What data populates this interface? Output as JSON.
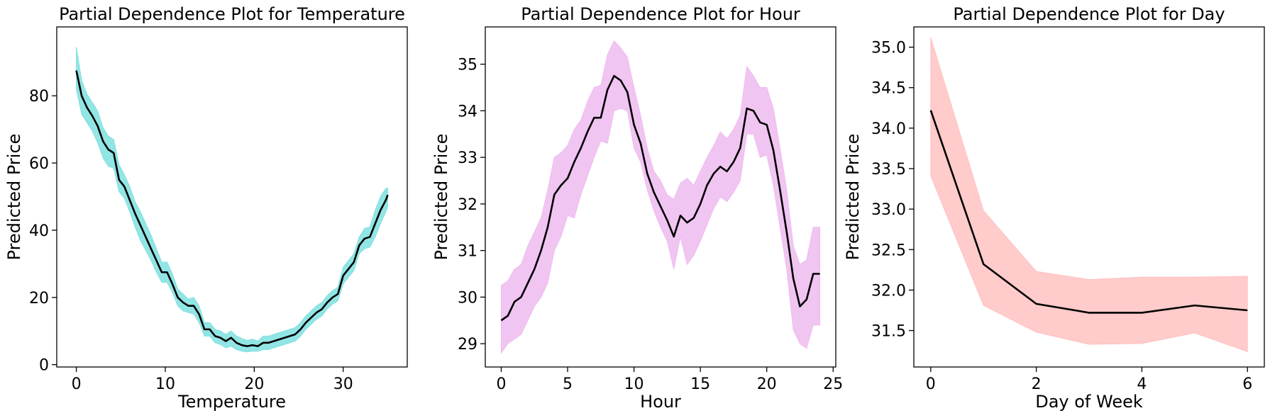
{
  "chart_data": [
    {
      "type": "line",
      "title": "Partial Dependence Plot for Temperature",
      "xlabel": "Temperature",
      "ylabel": "Predicted Price",
      "xlim": [
        -2.2,
        37.2
      ],
      "ylim": [
        -0.7,
        100.5
      ],
      "xticks": [
        0,
        10,
        20,
        30
      ],
      "yticks": [
        0,
        20,
        40,
        60,
        80
      ],
      "grid": false,
      "band_color": "#7fe0e0",
      "line_color": "#000000",
      "x": [
        0,
        0.6,
        1.2,
        1.8,
        2.4,
        3.0,
        3.6,
        4.2,
        4.8,
        5.4,
        6.0,
        6.6,
        7.2,
        7.8,
        8.4,
        9.0,
        9.6,
        10.2,
        10.8,
        11.4,
        12.0,
        12.6,
        13.2,
        13.8,
        14.4,
        15.0,
        15.6,
        16.2,
        16.8,
        17.4,
        18.0,
        18.6,
        19.2,
        19.8,
        20.4,
        21.0,
        21.6,
        22.2,
        22.8,
        23.4,
        24.0,
        24.6,
        25.2,
        25.8,
        26.4,
        27.0,
        27.6,
        28.2,
        28.8,
        29.4,
        30.0,
        30.6,
        31.2,
        31.8,
        32.4,
        33.0,
        33.6,
        34.2,
        34.8,
        35.0
      ],
      "mean": [
        87.5,
        80,
        76.5,
        74,
        71,
        66.5,
        64,
        63,
        55,
        53,
        49,
        45,
        41.5,
        38,
        34.5,
        31,
        27.5,
        27.5,
        24,
        20,
        18.5,
        17.5,
        17.5,
        15,
        10.5,
        10.5,
        8.5,
        8,
        7,
        8,
        6.5,
        5.8,
        5.5,
        5.8,
        5.5,
        6.5,
        6.5,
        7,
        7.5,
        8,
        8.5,
        9,
        10.5,
        12.5,
        14,
        15.5,
        16.5,
        18.5,
        20,
        21,
        26.5,
        28.5,
        30.5,
        35.5,
        37.5,
        38,
        42,
        46,
        49,
        50.5
      ],
      "lower": [
        82,
        74.5,
        72,
        69.5,
        66,
        61.5,
        59,
        58.5,
        51.5,
        49.5,
        45.5,
        41,
        37,
        34,
        31,
        27.5,
        24.5,
        24.5,
        21.5,
        17.5,
        16,
        15.5,
        15,
        12.5,
        8.5,
        8.5,
        6.5,
        6,
        5,
        5.5,
        4.5,
        4,
        3.8,
        4,
        4,
        4.5,
        4.5,
        5,
        5.5,
        6,
        6.5,
        7,
        8.5,
        10.5,
        12,
        13.5,
        14.5,
        16.5,
        18,
        19,
        24,
        26,
        28,
        33,
        34.5,
        35,
        38,
        42,
        45.5,
        47
      ],
      "upper": [
        94.5,
        84.5,
        80.5,
        78,
        75.5,
        70.5,
        68,
        67,
        59.5,
        56.5,
        53,
        48.5,
        45.5,
        42,
        38.5,
        34.5,
        30.5,
        30.5,
        27,
        22.5,
        21,
        19.5,
        20,
        17.5,
        12.5,
        12.5,
        10.5,
        10,
        9,
        10,
        8.5,
        7.8,
        7.2,
        7.6,
        7,
        8.5,
        8.5,
        9,
        9.5,
        10,
        10.5,
        11,
        12.5,
        14.5,
        16,
        17.5,
        18.5,
        20.5,
        22,
        23,
        29,
        31,
        33,
        38,
        40.5,
        41,
        46,
        50,
        52.5,
        52.5
      ]
    },
    {
      "type": "line",
      "title": "Partial Dependence Plot for Hour",
      "xlabel": "Hour",
      "ylabel": "Predicted Price",
      "xlim": [
        -1.2,
        25.2
      ],
      "ylim": [
        28.5,
        35.8
      ],
      "xticks": [
        0,
        5,
        10,
        15,
        20,
        25
      ],
      "yticks": [
        29,
        30,
        31,
        32,
        33,
        34,
        35
      ],
      "grid": false,
      "band_color": "#eebbf0",
      "line_color": "#000000",
      "x": [
        0,
        0.5,
        1,
        1.5,
        2,
        2.5,
        3,
        3.5,
        4,
        4.5,
        5,
        5.5,
        6,
        6.5,
        7,
        7.5,
        8,
        8.5,
        9,
        9.5,
        10,
        10.5,
        11,
        11.5,
        12,
        12.5,
        13,
        13.5,
        14,
        14.5,
        15,
        15.5,
        16,
        16.5,
        17,
        17.5,
        18,
        18.5,
        19,
        19.5,
        20,
        20.5,
        21,
        21.5,
        22,
        22.5,
        23,
        23.5,
        24
      ],
      "mean": [
        29.5,
        29.6,
        29.9,
        30,
        30.3,
        30.6,
        31,
        31.5,
        32.2,
        32.4,
        32.55,
        32.9,
        33.2,
        33.55,
        33.85,
        33.85,
        34.45,
        34.75,
        34.65,
        34.4,
        33.7,
        33.3,
        32.65,
        32.25,
        31.95,
        31.65,
        31.3,
        31.75,
        31.6,
        31.7,
        32,
        32.4,
        32.65,
        32.8,
        32.7,
        32.9,
        33.2,
        34.05,
        34,
        33.75,
        33.7,
        33.15,
        32.3,
        31.4,
        30.4,
        29.8,
        29.95,
        30.5,
        30.5
      ],
      "lower": [
        28.8,
        29,
        29.1,
        29.2,
        29.5,
        29.8,
        30,
        30.3,
        31,
        31.3,
        31.75,
        31.7,
        32.2,
        32.6,
        33,
        33.35,
        33.3,
        34,
        34.05,
        34,
        33.2,
        32.9,
        32.3,
        31.85,
        31.5,
        31.2,
        30.6,
        31.3,
        30.7,
        30.9,
        31.2,
        31.55,
        31.9,
        32.15,
        32.05,
        32.25,
        32.5,
        33.5,
        33.5,
        33,
        33.05,
        32.4,
        31.5,
        30.6,
        29.3,
        29,
        28.9,
        29.4,
        29.4
      ],
      "upper": [
        30.25,
        30.35,
        30.6,
        30.7,
        31.1,
        31.4,
        31.7,
        32.3,
        33,
        33.1,
        33.25,
        33.6,
        33.8,
        34.2,
        34.5,
        34.55,
        35.2,
        35.5,
        35.35,
        35.15,
        34.5,
        33.9,
        33.2,
        32.7,
        32.5,
        32.2,
        32.1,
        32.45,
        32.55,
        32.4,
        32.7,
        33,
        33.25,
        33.55,
        33.4,
        33.6,
        33.9,
        34.95,
        34.75,
        34.5,
        34.5,
        34.05,
        33.2,
        32.3,
        31.1,
        30.7,
        30.8,
        31.5,
        31.5
      ]
    },
    {
      "type": "line",
      "title": "Partial Dependence Plot for Day",
      "xlabel": "Day of Week",
      "ylabel": "Predicted Price",
      "xlim": [
        -0.32,
        6.32
      ],
      "ylim": [
        31.05,
        35.25
      ],
      "xticks": [
        0,
        2,
        4,
        6
      ],
      "yticks": [
        31.5,
        32.0,
        32.5,
        33.0,
        33.5,
        34.0,
        34.5,
        35.0
      ],
      "grid": false,
      "band_color": "#ffc2c2",
      "line_color": "#000000",
      "x": [
        0,
        1,
        2,
        3,
        4,
        5,
        6
      ],
      "mean": [
        34.22,
        32.32,
        31.83,
        31.72,
        31.72,
        31.81,
        31.75
      ],
      "lower": [
        33.41,
        31.81,
        31.48,
        31.33,
        31.34,
        31.47,
        31.24
      ],
      "upper": [
        35.12,
        32.98,
        32.23,
        32.13,
        32.16,
        32.16,
        32.17
      ]
    }
  ]
}
